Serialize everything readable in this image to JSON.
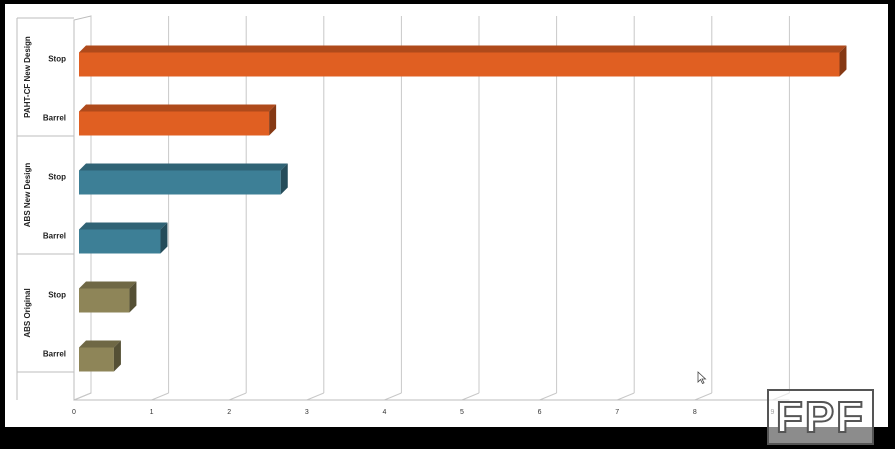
{
  "chart_data": {
    "type": "bar",
    "orientation": "horizontal",
    "style": "3d",
    "title": "",
    "xlabel": "",
    "ylabel": "",
    "xlim": [
      0,
      10
    ],
    "x_ticks": [
      "0",
      "1",
      "2",
      "3",
      "4",
      "5",
      "6",
      "7",
      "8",
      "9"
    ],
    "grid": true,
    "legend": "none",
    "groups": [
      {
        "name": "PAHT-CF New Design",
        "color": "#e05f22",
        "bars": [
          {
            "label": "Stop",
            "value": 9.8
          },
          {
            "label": "Barrel",
            "value": 2.45
          }
        ]
      },
      {
        "name": "ABS New Design",
        "color": "#3d7f96",
        "bars": [
          {
            "label": "Stop",
            "value": 2.6
          },
          {
            "label": "Barrel",
            "value": 1.05
          }
        ]
      },
      {
        "name": "ABS Original",
        "color": "#8e8558",
        "bars": [
          {
            "label": "Stop",
            "value": 0.65
          },
          {
            "label": "Barrel",
            "value": 0.45
          }
        ]
      }
    ]
  },
  "logo": {
    "text": "FPF"
  },
  "cursor": {
    "icon": "mouse-pointer-icon"
  }
}
